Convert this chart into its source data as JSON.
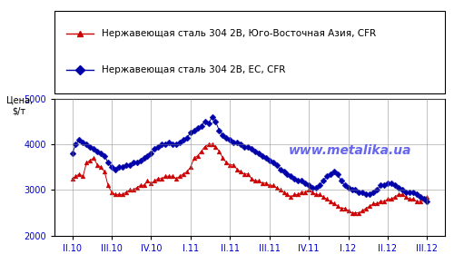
{
  "title_ylabel": "Цена,\n$/т",
  "watermark": "www.metalika.ua",
  "legend_sea": "Нержавеющая сталь 304 2В, Юго-Восточная Азия, CFR",
  "legend_eu": "Нержавеющая сталь 304 2В, ЕС, CFR",
  "ylim": [
    2000,
    5000
  ],
  "yticks": [
    2000,
    3000,
    4000,
    5000
  ],
  "xtick_labels": [
    "II.10",
    "III.10",
    "IV.10",
    "I.11",
    "II.11",
    "III.11",
    "IV.11",
    "I.12",
    "II.12",
    "III.12"
  ],
  "color_sea": "#cc0000",
  "color_eu": "#0000aa",
  "tick_color": "#0000cc",
  "sea_data": [
    3250,
    3300,
    3350,
    3300,
    3600,
    3650,
    3700,
    3550,
    3500,
    3400,
    3100,
    2950,
    2900,
    2900,
    2900,
    2950,
    3000,
    3000,
    3050,
    3100,
    3100,
    3200,
    3150,
    3200,
    3250,
    3250,
    3300,
    3300,
    3300,
    3250,
    3300,
    3350,
    3400,
    3500,
    3700,
    3750,
    3850,
    3950,
    4000,
    4000,
    3950,
    3850,
    3700,
    3600,
    3550,
    3550,
    3450,
    3400,
    3350,
    3350,
    3250,
    3200,
    3200,
    3150,
    3150,
    3100,
    3100,
    3050,
    3000,
    2950,
    2900,
    2850,
    2900,
    2900,
    2950,
    2950,
    3000,
    2950,
    2900,
    2900,
    2850,
    2800,
    2750,
    2700,
    2650,
    2600,
    2600,
    2550,
    2500,
    2500,
    2500,
    2550,
    2600,
    2650,
    2700,
    2700,
    2750,
    2750,
    2800,
    2800,
    2850,
    2900,
    2900,
    2850,
    2800,
    2800,
    2750,
    2750,
    2800,
    2850
  ],
  "eu_data": [
    3800,
    4000,
    4100,
    4050,
    4000,
    3950,
    3900,
    3850,
    3800,
    3750,
    3600,
    3500,
    3450,
    3500,
    3500,
    3550,
    3550,
    3600,
    3600,
    3650,
    3700,
    3750,
    3800,
    3900,
    3950,
    4000,
    4000,
    4050,
    4000,
    4000,
    4050,
    4100,
    4150,
    4250,
    4300,
    4350,
    4400,
    4500,
    4450,
    4600,
    4500,
    4300,
    4200,
    4150,
    4100,
    4050,
    4050,
    4000,
    3950,
    3950,
    3900,
    3850,
    3800,
    3750,
    3700,
    3650,
    3600,
    3550,
    3450,
    3400,
    3350,
    3300,
    3250,
    3200,
    3200,
    3150,
    3100,
    3050,
    3050,
    3100,
    3200,
    3300,
    3350,
    3400,
    3350,
    3200,
    3100,
    3050,
    3000,
    3000,
    2950,
    2950,
    2900,
    2900,
    2950,
    3000,
    3100,
    3100,
    3150,
    3150,
    3100,
    3050,
    3000,
    2950,
    2950,
    2950,
    2900,
    2850,
    2800,
    2750
  ],
  "n_points": 100,
  "background_color": "#ffffff",
  "grid_color": "#888888"
}
